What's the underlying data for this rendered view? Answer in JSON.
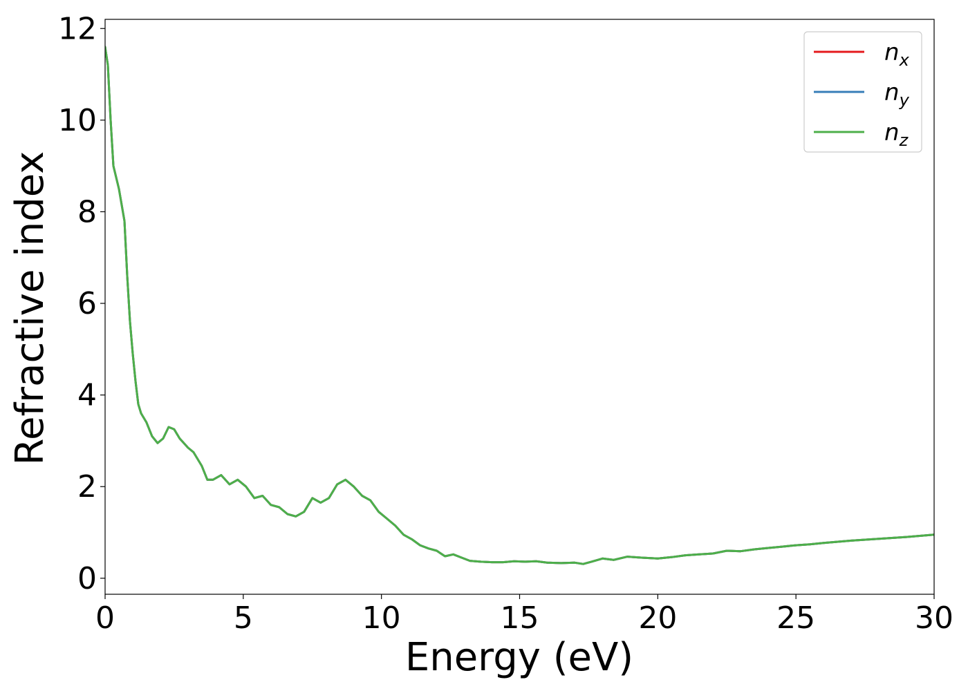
{
  "chart_data": {
    "type": "line",
    "xlabel": "Energy (eV)",
    "ylabel": "Refractive index",
    "xlim": [
      0,
      30
    ],
    "ylim": [
      -0.35,
      12.2
    ],
    "xticks": [
      0,
      5,
      10,
      15,
      20,
      25,
      30
    ],
    "yticks": [
      0,
      2,
      4,
      6,
      8,
      10,
      12
    ],
    "grid": false,
    "legend_position": "top-right",
    "series": [
      {
        "name": "n_x",
        "label_base": "n",
        "label_sub": "x",
        "color": "#e41a1c",
        "x": [
          0,
          0.1,
          0.2,
          0.3,
          0.5,
          0.7,
          0.8,
          0.9,
          1.0,
          1.1,
          1.2,
          1.3,
          1.5,
          1.7,
          1.9,
          2.1,
          2.3,
          2.5,
          2.7,
          3.0,
          3.2,
          3.5,
          3.7,
          3.9,
          4.2,
          4.5,
          4.8,
          5.1,
          5.4,
          5.7,
          6.0,
          6.3,
          6.6,
          6.9,
          7.2,
          7.5,
          7.8,
          8.1,
          8.4,
          8.7,
          9.0,
          9.3,
          9.6,
          9.9,
          10.2,
          10.5,
          10.8,
          11.1,
          11.4,
          11.7,
          12.0,
          12.3,
          12.6,
          12.9,
          13.2,
          13.6,
          14.0,
          14.4,
          14.8,
          15.2,
          15.6,
          16.0,
          16.5,
          17.0,
          17.3,
          17.6,
          18.0,
          18.4,
          18.9,
          19.4,
          20.0,
          20.5,
          21.0,
          21.5,
          22.0,
          22.5,
          23.0,
          23.5,
          24.0,
          24.5,
          25.0,
          25.5,
          26.0,
          27.0,
          28.0,
          29.0,
          30.0
        ],
        "values": [
          11.6,
          11.2,
          10.0,
          9.0,
          8.5,
          7.8,
          6.6,
          5.6,
          4.9,
          4.3,
          3.8,
          3.6,
          3.4,
          3.1,
          2.95,
          3.05,
          3.3,
          3.25,
          3.05,
          2.85,
          2.75,
          2.45,
          2.15,
          2.15,
          2.25,
          2.05,
          2.15,
          2.0,
          1.75,
          1.8,
          1.6,
          1.55,
          1.4,
          1.35,
          1.45,
          1.75,
          1.65,
          1.75,
          2.05,
          2.15,
          2.0,
          1.8,
          1.7,
          1.45,
          1.3,
          1.15,
          0.95,
          0.85,
          0.72,
          0.65,
          0.6,
          0.48,
          0.52,
          0.45,
          0.38,
          0.36,
          0.35,
          0.35,
          0.37,
          0.36,
          0.37,
          0.34,
          0.33,
          0.34,
          0.31,
          0.36,
          0.43,
          0.4,
          0.47,
          0.45,
          0.43,
          0.46,
          0.5,
          0.52,
          0.54,
          0.6,
          0.59,
          0.63,
          0.66,
          0.69,
          0.72,
          0.74,
          0.77,
          0.82,
          0.86,
          0.9,
          0.95
        ]
      },
      {
        "name": "n_y",
        "label_base": "n",
        "label_sub": "y",
        "color": "#377eb8",
        "x": [
          0,
          0.1,
          0.2,
          0.3,
          0.5,
          0.7,
          0.8,
          0.9,
          1.0,
          1.1,
          1.2,
          1.3,
          1.5,
          1.7,
          1.9,
          2.1,
          2.3,
          2.5,
          2.7,
          3.0,
          3.2,
          3.5,
          3.7,
          3.9,
          4.2,
          4.5,
          4.8,
          5.1,
          5.4,
          5.7,
          6.0,
          6.3,
          6.6,
          6.9,
          7.2,
          7.5,
          7.8,
          8.1,
          8.4,
          8.7,
          9.0,
          9.3,
          9.6,
          9.9,
          10.2,
          10.5,
          10.8,
          11.1,
          11.4,
          11.7,
          12.0,
          12.3,
          12.6,
          12.9,
          13.2,
          13.6,
          14.0,
          14.4,
          14.8,
          15.2,
          15.6,
          16.0,
          16.5,
          17.0,
          17.3,
          17.6,
          18.0,
          18.4,
          18.9,
          19.4,
          20.0,
          20.5,
          21.0,
          21.5,
          22.0,
          22.5,
          23.0,
          23.5,
          24.0,
          24.5,
          25.0,
          25.5,
          26.0,
          27.0,
          28.0,
          29.0,
          30.0
        ],
        "values": [
          11.6,
          11.2,
          10.0,
          9.0,
          8.5,
          7.8,
          6.6,
          5.6,
          4.9,
          4.3,
          3.8,
          3.6,
          3.4,
          3.1,
          2.95,
          3.05,
          3.3,
          3.25,
          3.05,
          2.85,
          2.75,
          2.45,
          2.15,
          2.15,
          2.25,
          2.05,
          2.15,
          2.0,
          1.75,
          1.8,
          1.6,
          1.55,
          1.4,
          1.35,
          1.45,
          1.75,
          1.65,
          1.75,
          2.05,
          2.15,
          2.0,
          1.8,
          1.7,
          1.45,
          1.3,
          1.15,
          0.95,
          0.85,
          0.72,
          0.65,
          0.6,
          0.48,
          0.52,
          0.45,
          0.38,
          0.36,
          0.35,
          0.35,
          0.37,
          0.36,
          0.37,
          0.34,
          0.33,
          0.34,
          0.31,
          0.36,
          0.43,
          0.4,
          0.47,
          0.45,
          0.43,
          0.46,
          0.5,
          0.52,
          0.54,
          0.6,
          0.59,
          0.63,
          0.66,
          0.69,
          0.72,
          0.74,
          0.77,
          0.82,
          0.86,
          0.9,
          0.95
        ]
      },
      {
        "name": "n_z",
        "label_base": "n",
        "label_sub": "z",
        "color": "#4daf4a",
        "x": [
          0,
          0.1,
          0.2,
          0.3,
          0.5,
          0.7,
          0.8,
          0.9,
          1.0,
          1.1,
          1.2,
          1.3,
          1.5,
          1.7,
          1.9,
          2.1,
          2.3,
          2.5,
          2.7,
          3.0,
          3.2,
          3.5,
          3.7,
          3.9,
          4.2,
          4.5,
          4.8,
          5.1,
          5.4,
          5.7,
          6.0,
          6.3,
          6.6,
          6.9,
          7.2,
          7.5,
          7.8,
          8.1,
          8.4,
          8.7,
          9.0,
          9.3,
          9.6,
          9.9,
          10.2,
          10.5,
          10.8,
          11.1,
          11.4,
          11.7,
          12.0,
          12.3,
          12.6,
          12.9,
          13.2,
          13.6,
          14.0,
          14.4,
          14.8,
          15.2,
          15.6,
          16.0,
          16.5,
          17.0,
          17.3,
          17.6,
          18.0,
          18.4,
          18.9,
          19.4,
          20.0,
          20.5,
          21.0,
          21.5,
          22.0,
          22.5,
          23.0,
          23.5,
          24.0,
          24.5,
          25.0,
          25.5,
          26.0,
          27.0,
          28.0,
          29.0,
          30.0
        ],
        "values": [
          11.6,
          11.2,
          10.0,
          9.0,
          8.5,
          7.8,
          6.6,
          5.6,
          4.9,
          4.3,
          3.8,
          3.6,
          3.4,
          3.1,
          2.95,
          3.05,
          3.3,
          3.25,
          3.05,
          2.85,
          2.75,
          2.45,
          2.15,
          2.15,
          2.25,
          2.05,
          2.15,
          2.0,
          1.75,
          1.8,
          1.6,
          1.55,
          1.4,
          1.35,
          1.45,
          1.75,
          1.65,
          1.75,
          2.05,
          2.15,
          2.0,
          1.8,
          1.7,
          1.45,
          1.3,
          1.15,
          0.95,
          0.85,
          0.72,
          0.65,
          0.6,
          0.48,
          0.52,
          0.45,
          0.38,
          0.36,
          0.35,
          0.35,
          0.37,
          0.36,
          0.37,
          0.34,
          0.33,
          0.34,
          0.31,
          0.36,
          0.43,
          0.4,
          0.47,
          0.45,
          0.43,
          0.46,
          0.5,
          0.52,
          0.54,
          0.6,
          0.59,
          0.63,
          0.66,
          0.69,
          0.72,
          0.74,
          0.77,
          0.82,
          0.86,
          0.9,
          0.95
        ]
      }
    ]
  }
}
